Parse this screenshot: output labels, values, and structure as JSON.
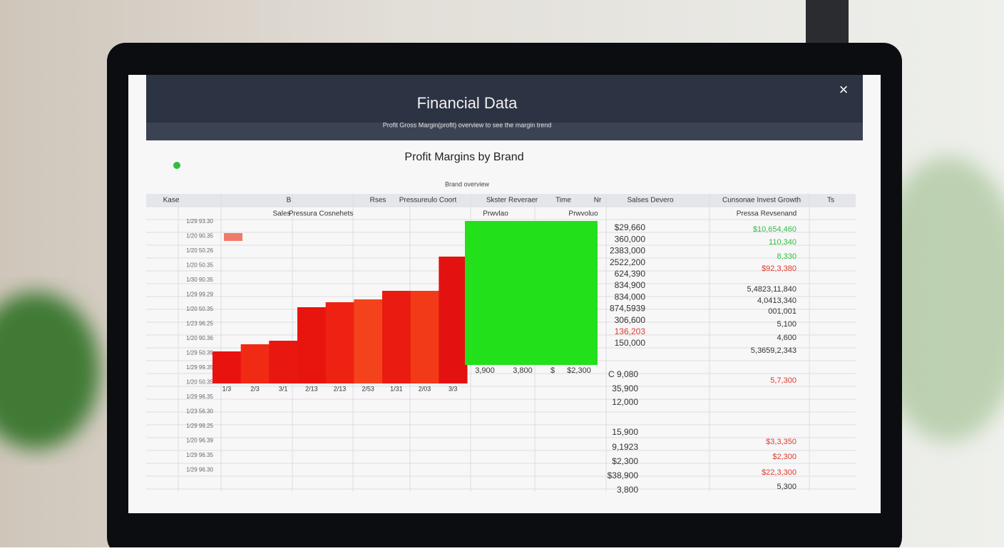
{
  "window": {
    "title": "Financial Data",
    "subtitle": "Profit Gross Margin(profit) overview to see the margin trend",
    "close": "×"
  },
  "sheet": {
    "title": "Profit Margins by Brand",
    "caption": "Brand overview",
    "columns": [
      "Kase",
      "B",
      "Rses",
      "Pressureulo Coort",
      "Skster Reveraer",
      "Time",
      "Nr",
      "Salses Devero",
      "Cunsonae Invest Growth",
      "Ts"
    ],
    "subcolumns": [
      "Sales",
      "Pressura Cosnehets",
      "Prwvlao",
      "Prwvoluo",
      "Pressa Revsenand"
    ],
    "row_labels": [
      "1/29 93.30",
      "1/20 90.35",
      "1/20 50.26",
      "1/20 50.35",
      "1/30 90.35",
      "1/29 99.29",
      "1/20 50.35",
      "1/23 96.25",
      "1/20 90.36",
      "1/29 50.39",
      "1/29 99.35",
      "1/20 50.35",
      "1/29 96.35",
      "1/23 56.30",
      "1/29 99.25",
      "1/20 96.39",
      "1/29 96.35",
      "1/29 96.30"
    ],
    "values_top": [
      "$29,660",
      "360,000",
      "2383,000",
      "2522,200",
      "624,390",
      "834,900",
      "834,000",
      "874,5939",
      "306,600",
      "136,203",
      "150,000"
    ],
    "values_top_colors": [
      "#333",
      "#333",
      "#333",
      "#333",
      "#333",
      "#333",
      "#333",
      "#333",
      "#333",
      "#e0392a",
      "#333"
    ],
    "values_bottom": [
      "C 9,080",
      "35,900",
      "12,000",
      "15,900",
      "9,1923",
      "$2,300",
      "$38,900",
      "3,800"
    ],
    "growth": [
      {
        "text": "$10,654,460",
        "color": "#2fbf3a"
      },
      {
        "text": "110,340",
        "color": "#2fbf3a"
      },
      {
        "text": "8,330",
        "color": "#2fbf3a"
      },
      {
        "text": "$92,3,380",
        "color": "#e0392a"
      },
      {
        "text": "5,4823,11,840",
        "color": "#333"
      },
      {
        "text": "4,0413,340",
        "color": "#333"
      },
      {
        "text": "001,001",
        "color": "#333"
      },
      {
        "text": "5,100",
        "color": "#333"
      },
      {
        "text": "4,600",
        "color": "#333"
      },
      {
        "text": "5,3659,2,343",
        "color": "#333"
      },
      {
        "text": "5,7,300",
        "color": "#e0392a"
      },
      {
        "text": "$3,3,350",
        "color": "#e0392a"
      },
      {
        "text": "$2,300",
        "color": "#e0392a"
      },
      {
        "text": "$22,3,300",
        "color": "#e0392a"
      },
      {
        "text": "5,300",
        "color": "#333"
      }
    ],
    "green_values": [
      "3,900",
      "3,800",
      "$",
      "$2,300"
    ]
  },
  "chart_data": {
    "type": "bar",
    "categories": [
      "1/3",
      "2/3",
      "3/1",
      "2/13",
      "2/13",
      "2/53",
      "1/31",
      "2/03",
      "3/3"
    ],
    "values": [
      45,
      55,
      60,
      107,
      114,
      118,
      130,
      130,
      178
    ],
    "colors": [
      "#e8130f",
      "#f02a14",
      "#e81810",
      "#e8150f",
      "#ee2212",
      "#f4431c",
      "#ea1b10",
      "#f23a18",
      "#e31210"
    ]
  }
}
